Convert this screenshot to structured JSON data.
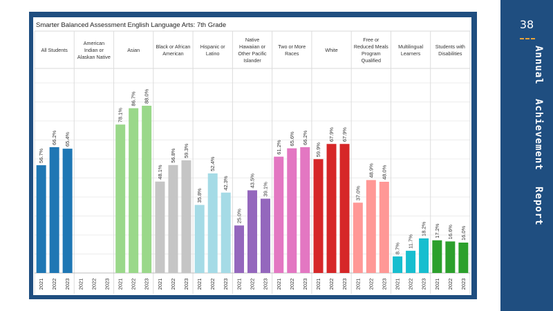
{
  "report": {
    "page_number": "38",
    "side_title_words": [
      "Annual",
      "Achievement",
      "Report"
    ]
  },
  "colors": {
    "frame": "#1f4e80",
    "accent_dash": "#e8a33a",
    "groups": [
      "#1f77b4",
      "#9ad88a",
      "#c5c5c5",
      "#a5dbe6",
      "#9467bd",
      "#e377c2",
      "#d62728",
      "#ff9896",
      "#17becf",
      "#2ca02c"
    ]
  },
  "chart_data": {
    "type": "bar",
    "title": "Smarter Balanced Assessment English Language Arts:  7th Grade",
    "ylim": [
      0,
      100
    ],
    "grid": true,
    "years": [
      "2021",
      "2022",
      "2023"
    ],
    "groups": [
      {
        "label_lines": [
          "All Students"
        ],
        "values": [
          56.7,
          66.2,
          65.4
        ],
        "labels": [
          "56.7%",
          "66.2%",
          "65.4%"
        ]
      },
      {
        "label_lines": [
          "American",
          "Indian or",
          "Alaskan Native"
        ],
        "values": [
          null,
          null,
          null
        ],
        "labels": [
          "",
          "",
          ""
        ]
      },
      {
        "label_lines": [
          "Asian"
        ],
        "values": [
          78.1,
          86.7,
          88.0
        ],
        "labels": [
          "78.1%",
          "86.7%",
          "88.0%"
        ]
      },
      {
        "label_lines": [
          "Black or African",
          "American"
        ],
        "values": [
          48.1,
          56.8,
          59.3
        ],
        "labels": [
          "48.1%",
          "56.8%",
          "59.3%"
        ]
      },
      {
        "label_lines": [
          "Hispanic or",
          "Latino"
        ],
        "values": [
          35.8,
          52.4,
          42.3
        ],
        "labels": [
          "35.8%",
          "52.4%",
          "42.3%"
        ]
      },
      {
        "label_lines": [
          "Native",
          "Hawaiian or",
          "Other Pacific",
          "Islander"
        ],
        "values": [
          25.0,
          43.5,
          39.1
        ],
        "labels": [
          "25.0%",
          "43.5%",
          "39.1%"
        ]
      },
      {
        "label_lines": [
          "Two or More",
          "Races"
        ],
        "values": [
          61.2,
          65.6,
          66.2
        ],
        "labels": [
          "61.2%",
          "65.6%",
          "66.2%"
        ]
      },
      {
        "label_lines": [
          "White"
        ],
        "values": [
          59.9,
          67.9,
          67.9
        ],
        "labels": [
          "59.9%",
          "67.9%",
          "67.9%"
        ]
      },
      {
        "label_lines": [
          "Free or",
          "Reduced Meals",
          "Program",
          "Qualified"
        ],
        "values": [
          37.0,
          48.9,
          48.0
        ],
        "labels": [
          "37.0%",
          "48.9%",
          "48.0%"
        ]
      },
      {
        "label_lines": [
          "Multilingual",
          "Learners"
        ],
        "values": [
          8.7,
          11.7,
          18.2
        ],
        "labels": [
          "8.7%",
          "11.7%",
          "18.2%"
        ]
      },
      {
        "label_lines": [
          "Students with",
          "Disabilities"
        ],
        "values": [
          17.2,
          16.6,
          16.0
        ],
        "labels": [
          "17.2%",
          "16.6%",
          "16.0%"
        ]
      }
    ]
  }
}
